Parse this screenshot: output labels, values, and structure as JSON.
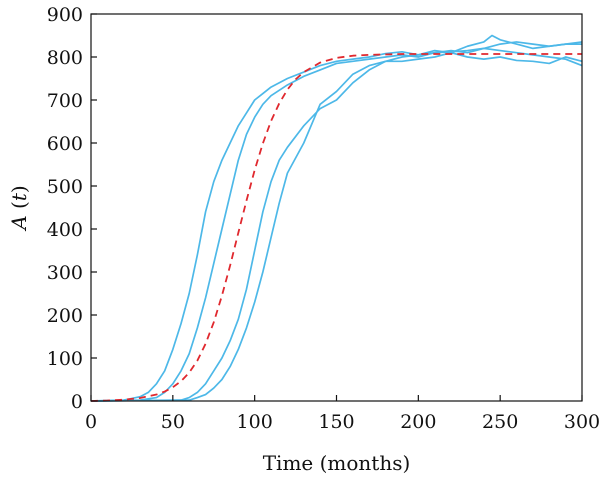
{
  "chart_data": {
    "type": "line",
    "xlabel": "Time (months)",
    "ylabel": "A(t)",
    "ylabel_parts": {
      "name": "A",
      "open": " (",
      "var": "t",
      "close": ")"
    },
    "xlim": [
      0,
      300
    ],
    "ylim": [
      0,
      900
    ],
    "xticks": [
      0,
      50,
      100,
      150,
      200,
      250,
      300
    ],
    "yticks": [
      0,
      100,
      200,
      300,
      400,
      500,
      600,
      700,
      800,
      900
    ],
    "grid": false,
    "legend": "none",
    "colors": {
      "simulation": "#4DB8E8",
      "mean": "#E0282E",
      "axis": "#111111"
    },
    "series": [
      {
        "style": "solid",
        "x": [
          0,
          20,
          30,
          35,
          40,
          45,
          50,
          55,
          60,
          65,
          70,
          75,
          80,
          85,
          90,
          95,
          100,
          105,
          110,
          120,
          130,
          140,
          150,
          160,
          170,
          180,
          190,
          200,
          210,
          220,
          230,
          240,
          250,
          260,
          270,
          280,
          290,
          300
        ],
        "y": [
          0,
          2,
          10,
          20,
          40,
          70,
          120,
          180,
          250,
          340,
          440,
          510,
          560,
          600,
          640,
          670,
          700,
          715,
          730,
          750,
          765,
          780,
          790,
          795,
          800,
          808,
          812,
          805,
          815,
          810,
          800,
          795,
          800,
          792,
          790,
          785,
          800,
          790
        ]
      },
      {
        "style": "solid",
        "x": [
          0,
          30,
          40,
          45,
          50,
          55,
          60,
          65,
          70,
          75,
          80,
          85,
          90,
          95,
          100,
          105,
          110,
          120,
          130,
          140,
          150,
          160,
          170,
          180,
          190,
          200,
          210,
          220,
          230,
          240,
          250,
          260,
          270,
          280,
          290,
          300
        ],
        "y": [
          0,
          2,
          8,
          20,
          40,
          70,
          110,
          170,
          240,
          320,
          400,
          480,
          560,
          620,
          660,
          690,
          710,
          735,
          755,
          770,
          785,
          790,
          795,
          800,
          805,
          800,
          810,
          815,
          810,
          820,
          815,
          810,
          805,
          800,
          795,
          780
        ]
      },
      {
        "style": "solid",
        "x": [
          0,
          55,
          60,
          65,
          70,
          75,
          80,
          85,
          90,
          95,
          100,
          105,
          110,
          115,
          120,
          130,
          140,
          150,
          160,
          170,
          180,
          190,
          200,
          210,
          220,
          230,
          240,
          250,
          260,
          270,
          280,
          290,
          300
        ],
        "y": [
          0,
          2,
          8,
          20,
          40,
          70,
          100,
          140,
          190,
          260,
          350,
          440,
          510,
          560,
          590,
          640,
          680,
          700,
          740,
          770,
          790,
          800,
          805,
          810,
          812,
          815,
          820,
          830,
          835,
          830,
          825,
          830,
          830
        ]
      },
      {
        "style": "solid",
        "x": [
          0,
          60,
          65,
          70,
          75,
          80,
          85,
          90,
          95,
          100,
          105,
          110,
          115,
          120,
          130,
          140,
          150,
          160,
          170,
          180,
          190,
          200,
          210,
          220,
          230,
          240,
          245,
          250,
          260,
          270,
          280,
          290,
          300
        ],
        "y": [
          0,
          2,
          8,
          15,
          30,
          50,
          80,
          120,
          170,
          230,
          300,
          380,
          460,
          530,
          600,
          690,
          720,
          760,
          780,
          790,
          790,
          795,
          800,
          810,
          825,
          835,
          850,
          840,
          830,
          820,
          825,
          830,
          835
        ]
      },
      {
        "style": "dashed",
        "x": [
          0,
          10,
          20,
          30,
          40,
          45,
          50,
          55,
          60,
          65,
          70,
          75,
          80,
          85,
          90,
          95,
          100,
          105,
          110,
          115,
          120,
          125,
          130,
          140,
          150,
          160,
          170,
          180,
          190,
          200,
          220,
          240,
          260,
          280,
          300
        ],
        "y": [
          0,
          1,
          3,
          7,
          15,
          22,
          32,
          46,
          66,
          94,
          133,
          183,
          245,
          315,
          391,
          466,
          537,
          599,
          651,
          692,
          724,
          748,
          765,
          787,
          798,
          803,
          805,
          806,
          807,
          807,
          807,
          807,
          807,
          807,
          807
        ]
      }
    ]
  }
}
